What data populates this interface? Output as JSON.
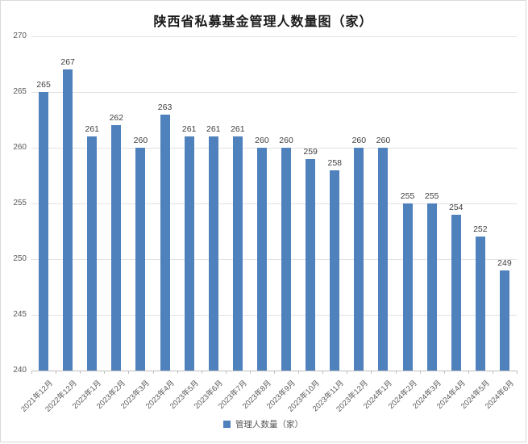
{
  "title": "陕西省私募基金管理人数量图（家）",
  "legend": {
    "label": "管理人数量（家）"
  },
  "colors": {
    "bar": "#4f81bd",
    "gridline": "#e2e2e2",
    "axis_line": "#bfbfbf",
    "axis_text": "#595959",
    "value_label_text": "#404040",
    "title_text": "#1a1a1a"
  },
  "chart_data": {
    "type": "bar",
    "title": "陕西省私募基金管理人数量图（家）",
    "series_name": "管理人数量（家）",
    "categories": [
      "2021年12月",
      "2022年12月",
      "2023年1月",
      "2023年2月",
      "2023年3月",
      "2023年4月",
      "2023年5月",
      "2023年6月",
      "2023年7月",
      "2023年8月",
      "2023年9月",
      "2023年10月",
      "2023年11月",
      "2023年12月",
      "2024年1月",
      "2024年2月",
      "2024年3月",
      "2024年4月",
      "2024年5月",
      "2024年6月"
    ],
    "values": [
      265,
      267,
      261,
      262,
      260,
      263,
      261,
      261,
      261,
      260,
      260,
      259,
      258,
      260,
      260,
      255,
      255,
      254,
      252,
      249
    ],
    "xlabel": "",
    "ylabel": "",
    "ylim": [
      240,
      270
    ],
    "ytick_step": 5,
    "yticks": [
      240,
      245,
      250,
      255,
      260,
      265,
      270
    ],
    "grid": true,
    "data_labels": true,
    "legend_position": "bottom"
  }
}
